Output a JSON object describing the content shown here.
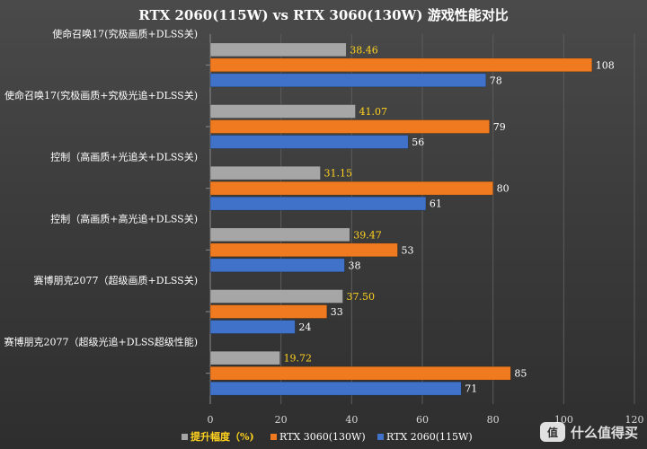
{
  "chart_data": {
    "type": "bar",
    "orientation": "horizontal",
    "title": "RTX 2060(115W) vs RTX 3060(130W) 游戏性能对比",
    "categories": [
      "使命召唤17(究极画质+DLSS关)",
      "使命召唤17(究极画质+究极光追+DLSS关)",
      "控制（高画质+光追关+DLSS关)",
      "控制（高画质+高光追+DLSS关)",
      "赛博朋克2077（超级画质+DLSS关)",
      "赛博朋克2077（超级光追+DLSS超级性能)"
    ],
    "series": [
      {
        "name": "提升幅度（%)",
        "color": "#a6a6a6",
        "label_color": "#ffd21f",
        "labels": [
          "38.46",
          "41.07",
          "31.15",
          "39.47",
          "37.50",
          "19.72"
        ],
        "values": [
          38.46,
          41.07,
          31.15,
          39.47,
          37.5,
          19.72
        ]
      },
      {
        "name": "RTX 3060(130W)",
        "color": "#f07a1f",
        "label_color": "#ffffff",
        "labels": [
          "108",
          "79",
          "80",
          "53",
          "33",
          "85"
        ],
        "values": [
          108,
          79,
          80,
          53,
          33,
          85
        ]
      },
      {
        "name": "RTX 2060(115W)",
        "color": "#3f72c8",
        "label_color": "#ffffff",
        "labels": [
          "78",
          "56",
          "61",
          "38",
          "24",
          "71"
        ],
        "values": [
          78,
          56,
          61,
          38,
          24,
          71
        ]
      }
    ],
    "xlim": [
      0,
      120
    ],
    "xticks": [
      "0",
      "20",
      "40",
      "60",
      "80",
      "100",
      "120"
    ],
    "grid": true,
    "legend": "bottom"
  },
  "watermark": {
    "icon": "值",
    "text": "什么值得买"
  }
}
